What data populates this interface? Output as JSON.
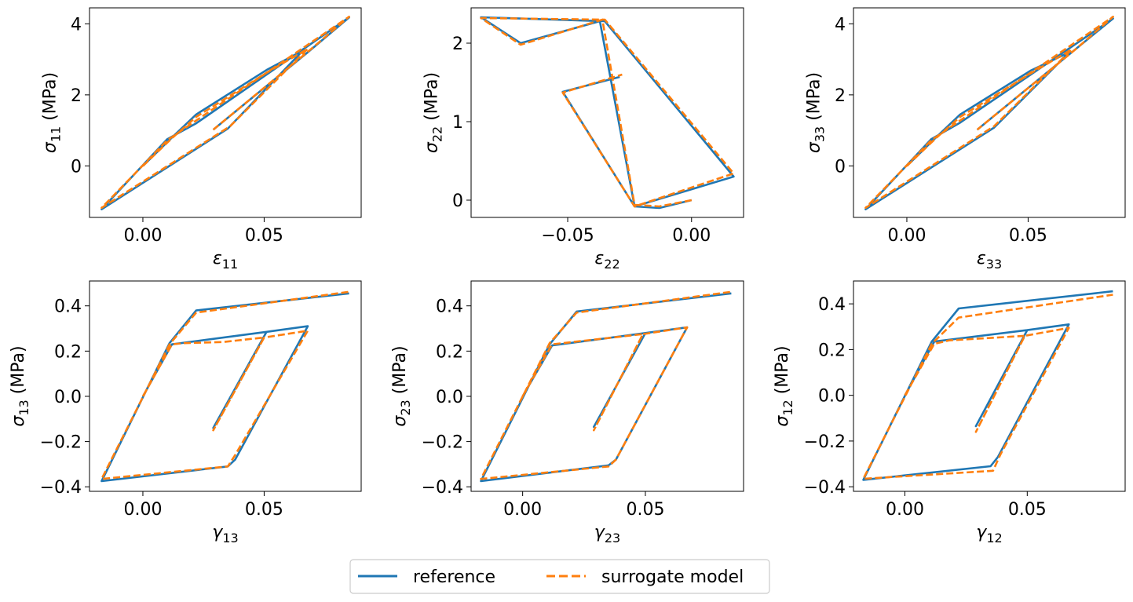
{
  "legend": {
    "entries": [
      {
        "label": "reference",
        "color": "#1f77b4",
        "style": "solid"
      },
      {
        "label": "surrogate model",
        "color": "#ff7f0e",
        "style": "dashed"
      }
    ],
    "placement": "bottom-center"
  },
  "chart_data": [
    {
      "type": "line",
      "ylabel_symbol": "σ",
      "ylabel_sub": "11",
      "ylabel_unit": " (MPa)",
      "xlabel_symbol": "ε",
      "xlabel_sub": "11",
      "xlim": [
        -0.022,
        0.09
      ],
      "ylim": [
        -1.45,
        4.45
      ],
      "xticks": [
        {
          "v": 0.0,
          "label": "0.00"
        },
        {
          "v": 0.05,
          "label": "0.05"
        }
      ],
      "yticks": [
        {
          "v": 0,
          "label": "0"
        },
        {
          "v": 2,
          "label": "2"
        },
        {
          "v": 4,
          "label": "4"
        }
      ],
      "series": [
        {
          "name": "reference",
          "x": [
            0.0,
            0.012,
            0.022,
            0.051,
            0.066,
            0.035,
            -0.017,
            0.01,
            0.022,
            0.085,
            0.068,
            0.029
          ],
          "y": [
            0.0,
            0.8,
            1.45,
            2.7,
            3.25,
            1.05,
            -1.22,
            0.75,
            1.2,
            4.18,
            3.2,
            1.02
          ]
        },
        {
          "name": "surrogate model",
          "x": [
            0.0,
            0.012,
            0.022,
            0.051,
            0.068,
            0.036,
            -0.017,
            0.01,
            0.022,
            0.085,
            0.069,
            0.029
          ],
          "y": [
            0.0,
            0.78,
            1.38,
            2.62,
            3.3,
            1.12,
            -1.18,
            0.72,
            1.28,
            4.2,
            3.27,
            1.02
          ]
        }
      ]
    },
    {
      "type": "line",
      "ylabel_symbol": "σ",
      "ylabel_sub": "22",
      "ylabel_unit": " (MPa)",
      "xlabel_symbol": "ε",
      "xlabel_sub": "22",
      "xlim": [
        -0.089,
        0.021
      ],
      "ylim": [
        -0.22,
        2.45
      ],
      "xticks": [
        {
          "v": -0.05,
          "label": "−0.05"
        },
        {
          "v": 0.0,
          "label": "0.00"
        }
      ],
      "yticks": [
        {
          "v": 0,
          "label": "0"
        },
        {
          "v": 1,
          "label": "1"
        },
        {
          "v": 2,
          "label": "2"
        }
      ],
      "series": [
        {
          "name": "reference",
          "x": [
            0.0,
            -0.013,
            -0.023,
            -0.037,
            -0.069,
            -0.085,
            -0.035,
            0.017,
            -0.023,
            -0.052,
            -0.029
          ],
          "y": [
            0.0,
            -0.1,
            -0.08,
            2.28,
            2.0,
            2.33,
            2.28,
            0.3,
            -0.08,
            1.38,
            1.57
          ]
        },
        {
          "name": "surrogate model",
          "x": [
            0.0,
            -0.013,
            -0.023,
            -0.036,
            -0.069,
            -0.085,
            -0.035,
            0.017,
            -0.023,
            -0.052,
            -0.028
          ],
          "y": [
            0.0,
            -0.08,
            -0.06,
            2.3,
            1.98,
            2.32,
            2.3,
            0.34,
            -0.08,
            1.37,
            1.6
          ]
        }
      ]
    },
    {
      "type": "line",
      "ylabel_symbol": "σ",
      "ylabel_sub": "33",
      "ylabel_unit": " (MPa)",
      "xlabel_symbol": "ε",
      "xlabel_sub": "33",
      "xlim": [
        -0.022,
        0.09
      ],
      "ylim": [
        -1.45,
        4.45
      ],
      "xticks": [
        {
          "v": 0.0,
          "label": "0.00"
        },
        {
          "v": 0.05,
          "label": "0.05"
        }
      ],
      "yticks": [
        {
          "v": 0,
          "label": "0"
        },
        {
          "v": 2,
          "label": "2"
        },
        {
          "v": 4,
          "label": "4"
        }
      ],
      "series": [
        {
          "name": "reference",
          "x": [
            0.0,
            0.012,
            0.022,
            0.051,
            0.067,
            0.036,
            -0.017,
            0.01,
            0.022,
            0.085,
            0.068,
            0.029
          ],
          "y": [
            0.0,
            0.8,
            1.45,
            2.68,
            3.2,
            1.08,
            -1.22,
            0.75,
            1.22,
            4.15,
            3.2,
            1.02
          ]
        },
        {
          "name": "surrogate model",
          "x": [
            0.0,
            0.012,
            0.022,
            0.051,
            0.068,
            0.036,
            -0.017,
            0.01,
            0.022,
            0.085,
            0.069,
            0.029
          ],
          "y": [
            0.0,
            0.78,
            1.38,
            2.6,
            3.28,
            1.12,
            -1.18,
            0.72,
            1.28,
            4.2,
            3.25,
            1.02
          ]
        }
      ]
    },
    {
      "type": "line",
      "ylabel_symbol": "σ",
      "ylabel_sub": "13",
      "ylabel_unit": " (MPa)",
      "xlabel_symbol": "γ",
      "xlabel_sub": "13",
      "xlim": [
        -0.022,
        0.09
      ],
      "ylim": [
        -0.42,
        0.51
      ],
      "xticks": [
        {
          "v": 0.0,
          "label": "0.00"
        },
        {
          "v": 0.05,
          "label": "0.05"
        }
      ],
      "yticks": [
        {
          "v": 0.4,
          "label": "0.4"
        },
        {
          "v": 0.2,
          "label": "0.2"
        },
        {
          "v": 0.0,
          "label": "0.0"
        },
        {
          "v": -0.2,
          "label": "−0.2"
        },
        {
          "v": -0.4,
          "label": "−0.4"
        }
      ],
      "series": [
        {
          "name": "reference",
          "x": [
            0.0,
            0.012,
            0.051,
            0.029,
            0.051,
            0.068,
            0.038,
            0.035,
            -0.017,
            0.011,
            0.022,
            0.085
          ],
          "y": [
            0.0,
            0.23,
            0.285,
            -0.14,
            0.285,
            0.31,
            -0.28,
            -0.31,
            -0.375,
            0.235,
            0.38,
            0.455
          ]
        },
        {
          "name": "surrogate model",
          "x": [
            0.0,
            0.012,
            0.017,
            0.033,
            0.05,
            0.029,
            0.05,
            0.068,
            0.038,
            0.035,
            -0.017,
            0.011,
            0.022,
            0.085
          ],
          "y": [
            0.0,
            0.23,
            0.235,
            0.24,
            0.26,
            -0.15,
            0.26,
            0.29,
            -0.26,
            -0.31,
            -0.365,
            0.23,
            0.37,
            0.462
          ]
        }
      ]
    },
    {
      "type": "line",
      "ylabel_symbol": "σ",
      "ylabel_sub": "23",
      "ylabel_unit": " (MPa)",
      "xlabel_symbol": "γ",
      "xlabel_sub": "23",
      "xlim": [
        -0.021,
        0.09
      ],
      "ylim": [
        -0.42,
        0.51
      ],
      "xticks": [
        {
          "v": 0.0,
          "label": "0.00"
        },
        {
          "v": 0.05,
          "label": "0.05"
        }
      ],
      "yticks": [
        {
          "v": 0.4,
          "label": "0.4"
        },
        {
          "v": 0.2,
          "label": "0.2"
        },
        {
          "v": 0.0,
          "label": "0.0"
        },
        {
          "v": -0.2,
          "label": "−0.2"
        },
        {
          "v": -0.4,
          "label": "−0.4"
        }
      ],
      "series": [
        {
          "name": "reference",
          "x": [
            0.0,
            0.012,
            0.05,
            0.029,
            0.05,
            0.067,
            0.038,
            0.035,
            -0.017,
            0.011,
            0.022,
            0.085
          ],
          "y": [
            0.0,
            0.225,
            0.28,
            -0.135,
            0.28,
            0.305,
            -0.28,
            -0.305,
            -0.375,
            0.23,
            0.375,
            0.455
          ]
        },
        {
          "name": "surrogate model",
          "x": [
            0.0,
            0.012,
            0.049,
            0.029,
            0.049,
            0.067,
            0.038,
            0.035,
            -0.017,
            0.011,
            0.022,
            0.085
          ],
          "y": [
            0.0,
            0.23,
            0.275,
            -0.15,
            0.275,
            0.305,
            -0.28,
            -0.31,
            -0.365,
            0.235,
            0.37,
            0.462
          ]
        }
      ]
    },
    {
      "type": "line",
      "ylabel_symbol": "σ",
      "ylabel_sub": "12",
      "ylabel_unit": " (MPa)",
      "xlabel_symbol": "γ",
      "xlabel_sub": "12",
      "xlim": [
        -0.021,
        0.09
      ],
      "ylim": [
        -0.42,
        0.5
      ],
      "xticks": [
        {
          "v": 0.0,
          "label": "0.00"
        },
        {
          "v": 0.05,
          "label": "0.05"
        }
      ],
      "yticks": [
        {
          "v": 0.4,
          "label": "0.4"
        },
        {
          "v": 0.2,
          "label": "0.2"
        },
        {
          "v": 0.0,
          "label": "0.0"
        },
        {
          "v": -0.2,
          "label": "−0.2"
        },
        {
          "v": -0.4,
          "label": "−0.4"
        }
      ],
      "series": [
        {
          "name": "reference",
          "x": [
            0.0,
            0.012,
            0.05,
            0.029,
            0.05,
            0.067,
            0.038,
            0.035,
            -0.017,
            0.011,
            0.022,
            0.085
          ],
          "y": [
            0.0,
            0.235,
            0.285,
            -0.135,
            0.285,
            0.31,
            -0.27,
            -0.31,
            -0.37,
            0.235,
            0.38,
            0.455
          ]
        },
        {
          "name": "surrogate model",
          "x": [
            0.0,
            0.012,
            0.018,
            0.049,
            0.029,
            0.049,
            0.067,
            0.039,
            0.036,
            -0.017,
            0.011,
            0.022,
            0.085
          ],
          "y": [
            0.0,
            0.225,
            0.24,
            0.26,
            -0.16,
            0.26,
            0.295,
            -0.26,
            -0.33,
            -0.365,
            0.225,
            0.34,
            0.44
          ]
        }
      ]
    }
  ]
}
